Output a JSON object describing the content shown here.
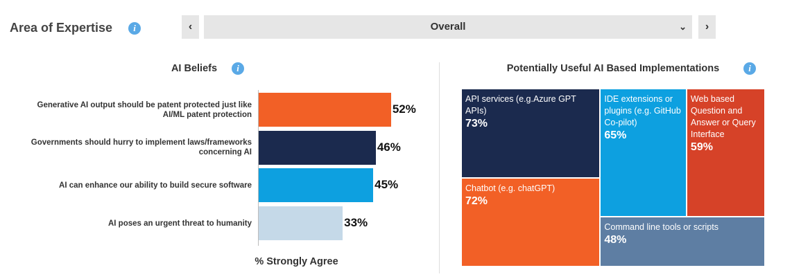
{
  "header": {
    "title": "Area of Expertise",
    "selector": "Overall"
  },
  "chart_data": [
    {
      "type": "hbar",
      "title": "AI Beliefs",
      "xlabel": "% Strongly Agree",
      "categories": [
        "Generative AI output should be patent protected just like AI/ML patent protection",
        "Governments should hurry to implement laws/frameworks concerning AI",
        "AI can enhance our ability to build secure software",
        "AI poses an urgent threat to humanity"
      ],
      "values": [
        52,
        46,
        45,
        33
      ],
      "value_labels": [
        "52%",
        "46%",
        "45%",
        "33%"
      ],
      "colors": [
        "#f26026",
        "#1b2a4e",
        "#0da0e0",
        "#c5d9e8"
      ]
    },
    {
      "type": "treemap",
      "title": "Potentially Useful AI Based Implementations",
      "categories": [
        "API services (e.g.Azure GPT APIs)",
        "Chatbot (e.g. chatGPT)",
        "IDE extensions or plugins (e.g. GitHub Co-pilot)",
        "Web based Question and Answer or Query Interface",
        "Command line tools or scripts"
      ],
      "values": [
        73,
        72,
        65,
        59,
        48
      ],
      "value_labels": [
        "73%",
        "72%",
        "65%",
        "59%",
        "48%"
      ],
      "colors": [
        "#1b2a4e",
        "#f26026",
        "#0da0e0",
        "#d64228",
        "#5e7ea3"
      ]
    }
  ]
}
